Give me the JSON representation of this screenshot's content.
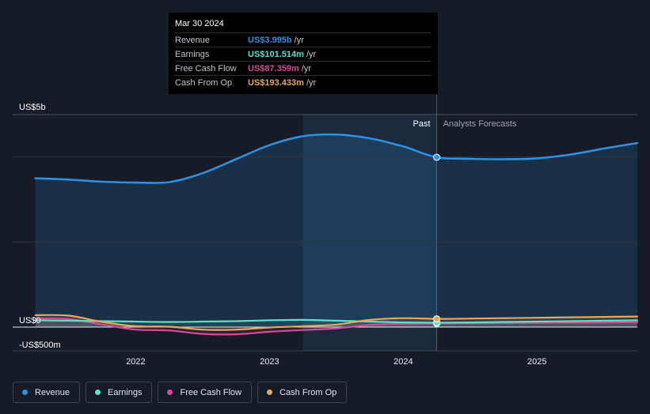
{
  "chart_data": {
    "type": "line",
    "y_axis": {
      "top_label": "US$5b",
      "zero_label": "US$0",
      "bottom_label": "-US$500m",
      "ylim": [
        -500,
        5000
      ]
    },
    "x_axis": {
      "ticks": [
        "2022",
        "2023",
        "2024",
        "2025"
      ],
      "tick_values": [
        2022.0,
        2023.0,
        2024.0,
        2025.0
      ],
      "xlim": [
        2021.08,
        2025.75
      ]
    },
    "past_label": "Past",
    "forecast_label": "Analysts Forecasts",
    "past_end": 2024.25,
    "highlight_start": 2023.25,
    "grid": true,
    "legend_position": "bottom-left",
    "series": [
      {
        "name": "Revenue",
        "color": "#2f8fe0",
        "x": [
          2021.25,
          2021.5,
          2021.75,
          2022.0,
          2022.25,
          2022.5,
          2022.75,
          2023.0,
          2023.25,
          2023.5,
          2023.75,
          2024.0,
          2024.25,
          2024.5,
          2024.75,
          2025.0,
          2025.25,
          2025.5,
          2025.75
        ],
        "y": [
          3500,
          3470,
          3420,
          3400,
          3410,
          3620,
          3950,
          4280,
          4490,
          4530,
          4440,
          4250,
          3995,
          3960,
          3950,
          3970,
          4060,
          4200,
          4330
        ]
      },
      {
        "name": "Earnings",
        "color": "#5ee0c8",
        "x": [
          2021.25,
          2021.5,
          2021.75,
          2022.0,
          2022.25,
          2022.5,
          2022.75,
          2023.0,
          2023.25,
          2023.5,
          2023.75,
          2024.0,
          2024.25,
          2024.5,
          2024.75,
          2025.0,
          2025.25,
          2025.5,
          2025.75
        ],
        "y": [
          160,
          150,
          140,
          130,
          120,
          130,
          140,
          160,
          170,
          150,
          130,
          110,
          101.514,
          110,
          120,
          130,
          140,
          150,
          160
        ]
      },
      {
        "name": "Free Cash Flow",
        "color": "#d9489a",
        "x": [
          2021.25,
          2021.5,
          2021.75,
          2022.0,
          2022.25,
          2022.5,
          2022.75,
          2023.0,
          2023.25,
          2023.5,
          2023.75,
          2024.0,
          2024.25,
          2024.5,
          2024.75,
          2025.0,
          2025.25,
          2025.5,
          2025.75
        ],
        "y": [
          200,
          190,
          60,
          -60,
          -80,
          -160,
          -170,
          -110,
          -70,
          -30,
          50,
          80,
          87.359,
          90,
          95,
          100,
          105,
          110,
          115
        ]
      },
      {
        "name": "Cash From Op",
        "color": "#e8a85a",
        "x": [
          2021.25,
          2021.5,
          2021.75,
          2022.0,
          2022.25,
          2022.5,
          2022.75,
          2023.0,
          2023.25,
          2023.5,
          2023.75,
          2024.0,
          2024.25,
          2024.5,
          2024.75,
          2025.0,
          2025.25,
          2025.5,
          2025.75
        ],
        "y": [
          280,
          270,
          120,
          20,
          10,
          -60,
          -60,
          -10,
          20,
          60,
          170,
          210,
          193.433,
          200,
          210,
          220,
          230,
          240,
          250
        ]
      }
    ]
  },
  "tooltip": {
    "date": "Mar 30 2024",
    "rows": [
      {
        "label": "Revenue",
        "value": "US$3.995b",
        "unit": "/yr",
        "color": "#2f8fe0"
      },
      {
        "label": "Earnings",
        "value": "US$101.514m",
        "unit": "/yr",
        "color": "#5ee0c8"
      },
      {
        "label": "Free Cash Flow",
        "value": "US$87.359m",
        "unit": "/yr",
        "color": "#d9489a"
      },
      {
        "label": "Cash From Op",
        "value": "US$193.433m",
        "unit": "/yr",
        "color": "#e8a85a"
      }
    ]
  },
  "legend": [
    {
      "label": "Revenue",
      "color": "#2f8fe0"
    },
    {
      "label": "Earnings",
      "color": "#5ee0c8"
    },
    {
      "label": "Free Cash Flow",
      "color": "#d9489a"
    },
    {
      "label": "Cash From Op",
      "color": "#e8a85a"
    }
  ]
}
